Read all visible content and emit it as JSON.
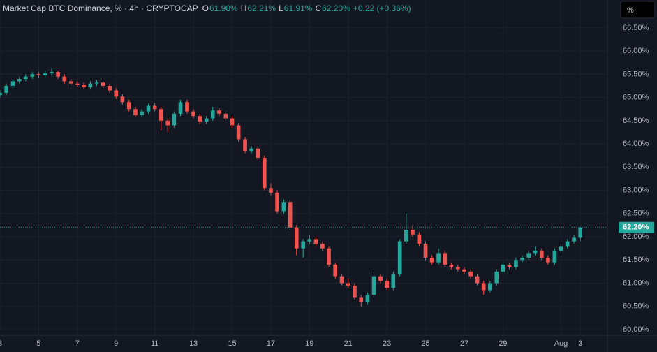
{
  "chart_data": {
    "type": "candlestick",
    "title": "Market Cap BTC Dominance, % · 4h · CRYPTOCAP",
    "legend": [
      {
        "key": "O",
        "value": "61.98%"
      },
      {
        "key": "H",
        "value": "62.21%"
      },
      {
        "key": "L",
        "value": "61.91%"
      },
      {
        "key": "C",
        "value": "62.20%"
      }
    ],
    "change": "+0.22 (+0.36%)",
    "unit_button": "%",
    "up_color": "#26a69a",
    "down_color": "#ef5350",
    "grid": true,
    "last_price": {
      "value": 62.2,
      "label": "62.20%"
    },
    "xlim": [
      3,
      34.4
    ],
    "ylim": [
      59.88,
      67.1
    ],
    "xticks": [
      3,
      5,
      7,
      9,
      11,
      13,
      15,
      17,
      19,
      21,
      23,
      25,
      27,
      29,
      {
        "value": 32,
        "label": "Aug"
      },
      {
        "value": 33,
        "label": "3"
      }
    ],
    "yticks": [
      {
        "value": 60,
        "label": "60.00%"
      },
      {
        "value": 60.5,
        "label": "60.50%"
      },
      {
        "value": 61,
        "label": "61.00%"
      },
      {
        "value": 61.5,
        "label": "61.50%"
      },
      {
        "value": 62,
        "label": "62.00%"
      },
      {
        "value": 62.5,
        "label": "62.50%"
      },
      {
        "value": 63,
        "label": "63.00%"
      },
      {
        "value": 63.5,
        "label": "63.50%"
      },
      {
        "value": 64,
        "label": "64.00%"
      },
      {
        "value": 64.5,
        "label": "64.50%"
      },
      {
        "value": 65,
        "label": "65.00%"
      },
      {
        "value": 65.5,
        "label": "65.50%"
      },
      {
        "value": 66,
        "label": "66.00%"
      },
      {
        "value": 66.5,
        "label": "66.50%"
      }
    ],
    "x": [
      3,
      3.33,
      3.67,
      4,
      4.33,
      4.67,
      5,
      5.33,
      5.67,
      6,
      6.33,
      6.67,
      7,
      7.33,
      7.67,
      8,
      8.33,
      8.67,
      9,
      9.33,
      9.67,
      10,
      10.33,
      10.67,
      11,
      11.33,
      11.67,
      12,
      12.33,
      12.67,
      13,
      13.33,
      13.67,
      14,
      14.33,
      14.67,
      15,
      15.33,
      15.67,
      16,
      16.33,
      16.67,
      17,
      17.33,
      17.67,
      18,
      18.33,
      18.67,
      19,
      19.33,
      19.67,
      20,
      20.33,
      20.67,
      21,
      21.33,
      21.67,
      22,
      22.33,
      22.67,
      23,
      23.33,
      23.67,
      24,
      24.33,
      24.67,
      25,
      25.33,
      25.67,
      26,
      26.33,
      26.67,
      27,
      27.33,
      27.67,
      28,
      28.33,
      28.67,
      29,
      29.33,
      29.67,
      30,
      30.33,
      30.67,
      31,
      31.33,
      31.67,
      32,
      32.33,
      32.67,
      33
    ],
    "open": [
      65.05,
      65.1,
      65.25,
      65.35,
      65.4,
      65.45,
      65.5,
      65.48,
      65.52,
      65.55,
      65.45,
      65.35,
      65.3,
      65.28,
      65.22,
      65.3,
      65.32,
      65.25,
      65.15,
      65.02,
      64.9,
      64.75,
      64.62,
      64.7,
      64.82,
      64.75,
      64.5,
      64.4,
      64.65,
      64.9,
      64.7,
      64.6,
      64.48,
      64.55,
      64.72,
      64.65,
      64.55,
      64.4,
      64.1,
      63.85,
      63.9,
      63.7,
      63.05,
      62.95,
      62.55,
      62.75,
      62.2,
      61.75,
      61.9,
      61.95,
      61.85,
      61.75,
      61.4,
      61.15,
      61.0,
      60.95,
      60.7,
      60.6,
      60.75,
      61.15,
      61.05,
      60.9,
      61.2,
      61.9,
      62.15,
      62.05,
      61.85,
      61.55,
      61.45,
      61.65,
      61.4,
      61.35,
      61.3,
      61.25,
      61.15,
      61.0,
      60.85,
      61.0,
      61.25,
      61.4,
      61.35,
      61.5,
      61.55,
      61.65,
      61.7,
      61.55,
      61.45,
      61.7,
      61.8,
      61.9,
      61.98
    ],
    "high": [
      65.15,
      65.3,
      65.4,
      65.45,
      65.5,
      65.55,
      65.55,
      65.58,
      65.62,
      65.58,
      65.5,
      65.4,
      65.35,
      65.32,
      65.35,
      65.37,
      65.36,
      65.3,
      65.2,
      65.07,
      64.95,
      64.8,
      64.75,
      64.87,
      64.88,
      64.8,
      64.55,
      64.7,
      64.95,
      64.95,
      64.75,
      64.65,
      64.6,
      64.8,
      64.77,
      64.7,
      64.6,
      64.45,
      64.15,
      63.95,
      63.95,
      63.75,
      63.15,
      63.0,
      62.8,
      62.8,
      62.25,
      61.95,
      62.05,
      62.0,
      61.9,
      61.8,
      61.45,
      61.2,
      61.1,
      61.0,
      60.75,
      60.8,
      61.25,
      61.2,
      61.1,
      61.25,
      61.95,
      62.5,
      62.25,
      62.1,
      61.9,
      61.6,
      61.75,
      61.7,
      61.45,
      61.4,
      61.35,
      61.3,
      61.2,
      61.05,
      61.05,
      61.3,
      61.45,
      61.45,
      61.55,
      61.6,
      61.7,
      61.8,
      61.75,
      61.6,
      61.75,
      61.85,
      61.95,
      62.05,
      62.21
    ],
    "low": [
      65.0,
      65.05,
      65.2,
      65.3,
      65.35,
      65.4,
      65.42,
      65.43,
      65.47,
      65.4,
      65.3,
      65.25,
      65.23,
      65.17,
      65.17,
      65.25,
      65.2,
      65.1,
      64.97,
      64.85,
      64.7,
      64.57,
      64.57,
      64.65,
      64.7,
      64.3,
      64.25,
      64.35,
      64.6,
      64.65,
      64.55,
      64.43,
      64.43,
      64.5,
      64.6,
      64.5,
      64.35,
      64.05,
      63.8,
      63.8,
      63.65,
      63.0,
      62.9,
      62.5,
      62.5,
      62.15,
      61.6,
      61.55,
      61.85,
      61.8,
      61.7,
      61.35,
      61.1,
      60.95,
      60.9,
      60.65,
      60.5,
      60.55,
      60.7,
      61.0,
      60.85,
      60.85,
      61.15,
      61.85,
      62.0,
      61.8,
      61.5,
      61.4,
      61.4,
      61.35,
      61.3,
      61.25,
      61.2,
      61.1,
      60.95,
      60.75,
      60.8,
      60.95,
      61.2,
      61.3,
      61.3,
      61.45,
      61.5,
      61.6,
      61.5,
      61.4,
      61.4,
      61.65,
      61.75,
      61.85,
      61.91
    ],
    "close": [
      65.1,
      65.25,
      65.35,
      65.4,
      65.45,
      65.5,
      65.48,
      65.52,
      65.55,
      65.45,
      65.35,
      65.3,
      65.28,
      65.22,
      65.3,
      65.32,
      65.25,
      65.15,
      65.02,
      64.9,
      64.75,
      64.62,
      64.7,
      64.82,
      64.75,
      64.5,
      64.4,
      64.65,
      64.9,
      64.7,
      64.6,
      64.48,
      64.55,
      64.72,
      64.65,
      64.55,
      64.4,
      64.1,
      63.85,
      63.9,
      63.7,
      63.05,
      62.95,
      62.55,
      62.75,
      62.2,
      61.75,
      61.9,
      61.95,
      61.85,
      61.75,
      61.4,
      61.15,
      61.0,
      60.95,
      60.7,
      60.6,
      60.75,
      61.15,
      61.05,
      60.9,
      61.2,
      61.9,
      62.15,
      62.05,
      61.85,
      61.55,
      61.45,
      61.65,
      61.4,
      61.35,
      61.3,
      61.25,
      61.15,
      61.0,
      60.85,
      61.0,
      61.25,
      61.4,
      61.35,
      61.5,
      61.55,
      61.65,
      61.7,
      61.55,
      61.45,
      61.7,
      61.8,
      61.9,
      61.98,
      62.2
    ]
  }
}
